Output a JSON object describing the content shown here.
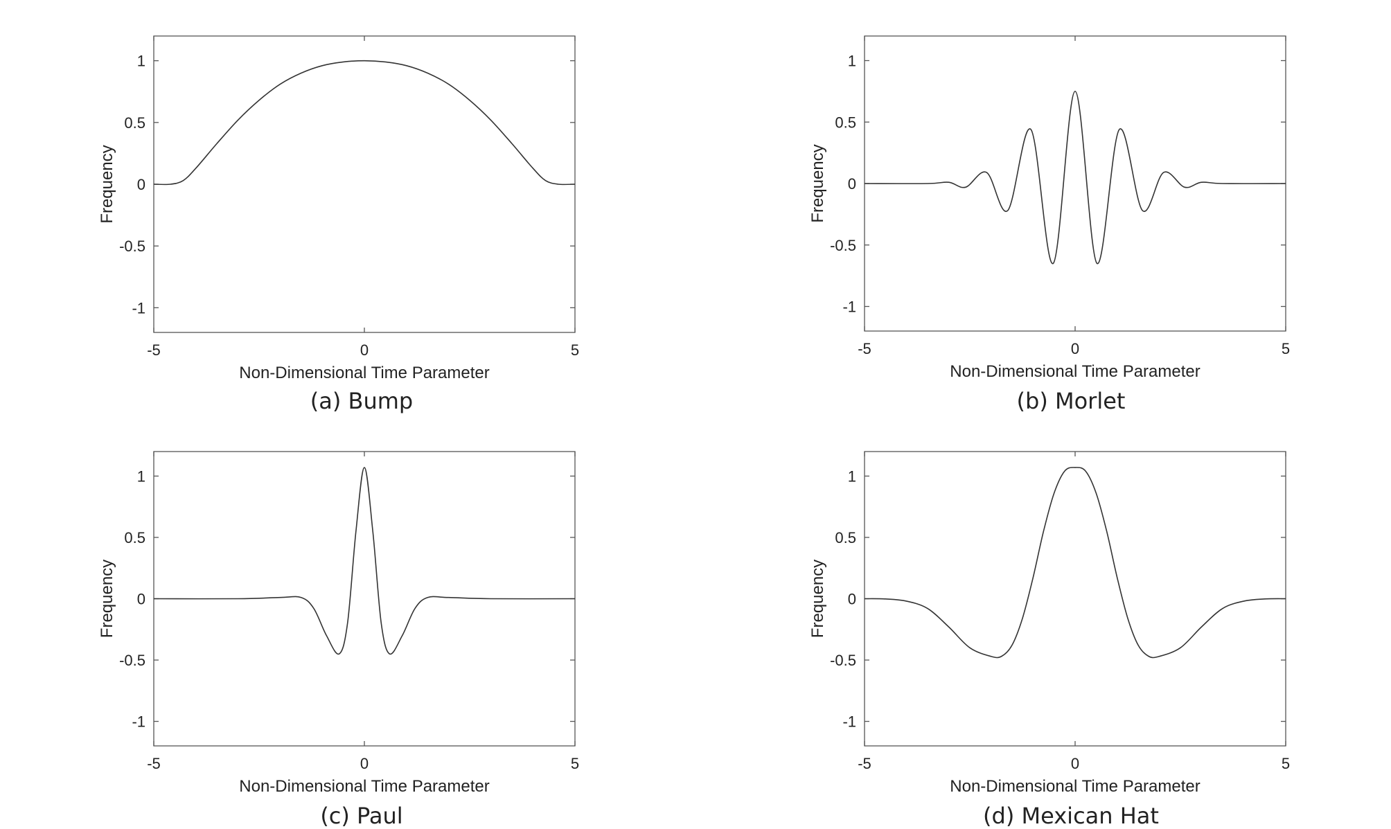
{
  "chart_data": [
    {
      "type": "line",
      "caption": "(a) Bump",
      "xlabel": "Non-Dimensional Time Parameter",
      "ylabel": "Frequency",
      "xlim": [
        -5,
        5
      ],
      "ylim": [
        -1.2,
        1.2
      ],
      "xticks": [
        "-5",
        "0",
        "5"
      ],
      "yticks": [
        "-1",
        "-0.5",
        "0",
        "0.5",
        "1"
      ],
      "grid": false,
      "series": [
        {
          "x": [
            -5,
            -4.6,
            -4.3,
            -4.0,
            -3.5,
            -3.0,
            -2.5,
            -2.0,
            -1.5,
            -1.0,
            -0.5,
            0,
            0.5,
            1.0,
            1.5,
            2.0,
            2.5,
            3.0,
            3.5,
            4.0,
            4.3,
            4.6,
            5
          ],
          "y": [
            0,
            0,
            0.03,
            0.13,
            0.33,
            0.52,
            0.68,
            0.81,
            0.9,
            0.96,
            0.99,
            1.0,
            0.99,
            0.96,
            0.9,
            0.81,
            0.68,
            0.52,
            0.33,
            0.13,
            0.03,
            0,
            0
          ]
        }
      ]
    },
    {
      "type": "line",
      "caption": "(b) Morlet",
      "xlabel": "Non-Dimensional Time Parameter",
      "ylabel": "Frequency",
      "xlim": [
        -5,
        5
      ],
      "ylim": [
        -1.2,
        1.2
      ],
      "xticks": [
        "-5",
        "0",
        "5"
      ],
      "yticks": [
        "-1",
        "-0.5",
        "0",
        "0.5",
        "1"
      ],
      "grid": false,
      "series": [
        {
          "x": [
            -5,
            -3.5,
            -3.0,
            -2.6,
            -2.1,
            -1.6,
            -1.05,
            -0.52,
            0,
            0.52,
            1.05,
            1.6,
            2.1,
            2.6,
            3.0,
            3.5,
            5
          ],
          "y": [
            0,
            0,
            0.01,
            -0.03,
            0.09,
            -0.22,
            0.44,
            -0.65,
            0.75,
            -0.65,
            0.44,
            -0.22,
            0.09,
            -0.03,
            0.01,
            0,
            0
          ]
        }
      ]
    },
    {
      "type": "line",
      "caption": "(c) Paul",
      "xlabel": "Non-Dimensional Time Parameter",
      "ylabel": "Frequency",
      "xlim": [
        -5,
        5
      ],
      "ylim": [
        -1.2,
        1.2
      ],
      "xticks": [
        "-5",
        "0",
        "5"
      ],
      "yticks": [
        "-1",
        "-0.5",
        "0",
        "0.5",
        "1"
      ],
      "grid": false,
      "series": [
        {
          "x": [
            -5,
            -3.0,
            -2.0,
            -1.5,
            -1.2,
            -0.9,
            -0.6,
            -0.4,
            -0.2,
            0,
            0.2,
            0.4,
            0.6,
            0.9,
            1.2,
            1.5,
            2.0,
            3.0,
            5
          ],
          "y": [
            0,
            0,
            0.01,
            0.01,
            -0.08,
            -0.3,
            -0.45,
            -0.2,
            0.55,
            1.07,
            0.55,
            -0.2,
            -0.45,
            -0.3,
            -0.08,
            0.01,
            0.01,
            0,
            0
          ]
        }
      ]
    },
    {
      "type": "line",
      "caption": "(d) Mexican Hat",
      "xlabel": "Non-Dimensional Time Parameter",
      "ylabel": "Frequency",
      "xlim": [
        -5,
        5
      ],
      "ylim": [
        -1.2,
        1.2
      ],
      "xticks": [
        "-5",
        "0",
        "5"
      ],
      "yticks": [
        "-1",
        "-0.5",
        "0",
        "0.5",
        "1"
      ],
      "grid": false,
      "series": [
        {
          "x": [
            -5,
            -4.5,
            -4.0,
            -3.5,
            -3.0,
            -2.5,
            -2.0,
            -1.75,
            -1.5,
            -1.25,
            -1.0,
            -0.75,
            -0.5,
            -0.25,
            0,
            0.25,
            0.5,
            0.75,
            1.0,
            1.25,
            1.5,
            1.75,
            2.0,
            2.5,
            3.0,
            3.5,
            4.0,
            4.5,
            5
          ],
          "y": [
            0,
            -0.002,
            -0.02,
            -0.08,
            -0.23,
            -0.4,
            -0.47,
            -0.47,
            -0.38,
            -0.16,
            0.17,
            0.55,
            0.86,
            1.04,
            1.07,
            1.04,
            0.86,
            0.55,
            0.17,
            -0.16,
            -0.38,
            -0.47,
            -0.47,
            -0.4,
            -0.23,
            -0.08,
            -0.02,
            -0.002,
            0
          ]
        }
      ]
    }
  ]
}
